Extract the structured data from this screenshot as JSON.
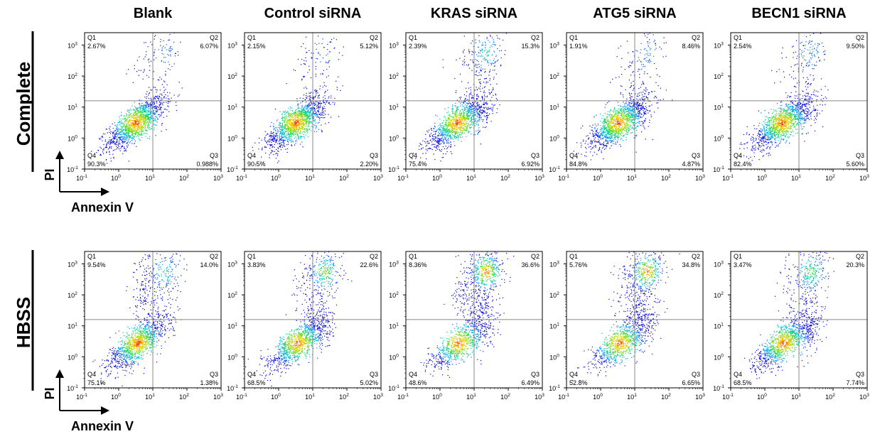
{
  "chart_data": {
    "type": "scatter",
    "plot_style": "flow cytometry density dot plot, quadrant gates",
    "scale": "log",
    "xlim_log10": [
      -1,
      3
    ],
    "ylim_log10": [
      -1,
      3.4
    ],
    "ticks": [
      {
        "base": "10",
        "exp": "-1",
        "value": 0.1
      },
      {
        "base": "10",
        "exp": "0",
        "value": 1
      },
      {
        "base": "10",
        "exp": "1",
        "value": 10
      },
      {
        "base": "10",
        "exp": "2",
        "value": 100
      },
      {
        "base": "10",
        "exp": "3",
        "value": 1000
      }
    ],
    "gate": {
      "x": 10,
      "y": 16
    },
    "columns": [
      "Blank",
      "Control siRNA",
      "KRAS siRNA",
      "ATG5 siRNA",
      "BECN1 siRNA"
    ],
    "rows": [
      "Complete",
      "HBSS"
    ],
    "xlabel": "Annexin V",
    "ylabel": "PI",
    "quadrant_names": [
      "Q1",
      "Q2",
      "Q3",
      "Q4"
    ],
    "panels": [
      {
        "row": "Complete",
        "column": "Blank",
        "Q1": "2.67%",
        "Q2": "6.07%",
        "Q3": "0.988%",
        "Q4": "90.3%"
      },
      {
        "row": "Complete",
        "column": "Control siRNA",
        "Q1": "2.15%",
        "Q2": "5.12%",
        "Q3": "2.20%",
        "Q4": "90.5%"
      },
      {
        "row": "Complete",
        "column": "KRAS siRNA",
        "Q1": "2.39%",
        "Q2": "15.3%",
        "Q3": "6.92%",
        "Q4": "75.4%"
      },
      {
        "row": "Complete",
        "column": "ATG5 siRNA",
        "Q1": "1.91%",
        "Q2": "8.46%",
        "Q3": "4.87%",
        "Q4": "84.8%"
      },
      {
        "row": "Complete",
        "column": "BECN1 siRNA",
        "Q1": "2.54%",
        "Q2": "9.50%",
        "Q3": "5.60%",
        "Q4": "82.4%"
      },
      {
        "row": "HBSS",
        "column": "Blank",
        "Q1": "9.54%",
        "Q2": "14.0%",
        "Q3": "1.38%",
        "Q4": "75.1%"
      },
      {
        "row": "HBSS",
        "column": "Control siRNA",
        "Q1": "3.83%",
        "Q2": "22.6%",
        "Q3": "5.02%",
        "Q4": "68.5%"
      },
      {
        "row": "HBSS",
        "column": "KRAS siRNA",
        "Q1": "8.36%",
        "Q2": "36.6%",
        "Q3": "6.49%",
        "Q4": "48.6%"
      },
      {
        "row": "HBSS",
        "column": "ATG5 siRNA",
        "Q1": "5.76%",
        "Q2": "34.8%",
        "Q3": "6.65%",
        "Q4": "52.8%"
      },
      {
        "row": "HBSS",
        "column": "BECN1 siRNA",
        "Q1": "3.47%",
        "Q2": "20.3%",
        "Q3": "7.74%",
        "Q4": "68.5%"
      }
    ]
  }
}
